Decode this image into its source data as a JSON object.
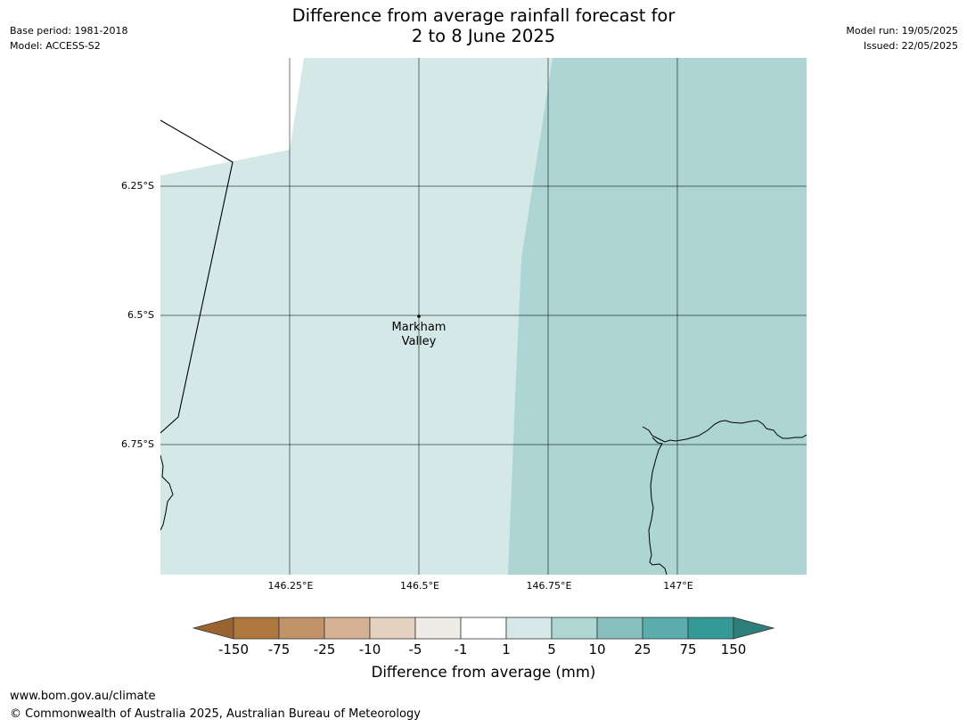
{
  "title_line1": "Difference from average rainfall forecast for",
  "title_line2": "2 to 8 June 2025",
  "meta": {
    "base_period": "Base period: 1981-2018",
    "model": "Model: ACCESS-S2",
    "model_run": "Model run: 19/05/2025",
    "issued": "Issued: 22/05/2025"
  },
  "map": {
    "latitude_labels": [
      "6.25°S",
      "6.5°S",
      "6.75°S"
    ],
    "longitude_labels": [
      "146.25°E",
      "146.5°E",
      "146.75°E",
      "147°E"
    ],
    "places": [
      {
        "name": "Markham\nValley"
      }
    ],
    "region_colors": {
      "light_wet": "#d4e8e7",
      "wet": "#acd5d4"
    }
  },
  "legend": {
    "title": "Difference from average (mm)",
    "ticks": [
      "-150",
      "-75",
      "-25",
      "-10",
      "-5",
      "-1",
      "1",
      "5",
      "10",
      "25",
      "75",
      "150"
    ],
    "colors": [
      "#9a6432",
      "#ad773d",
      "#c29268",
      "#d6b194",
      "#e5d1c0",
      "#efebe7",
      "#ffffff",
      "#d6e9e8",
      "#add6d5",
      "#87c0be",
      "#5aadac",
      "#349a97",
      "#2c7f7b"
    ]
  },
  "footer": {
    "url": "www.bom.gov.au/climate",
    "copyright": "© Commonwealth of Australia 2025, Australian Bureau of Meteorology"
  }
}
